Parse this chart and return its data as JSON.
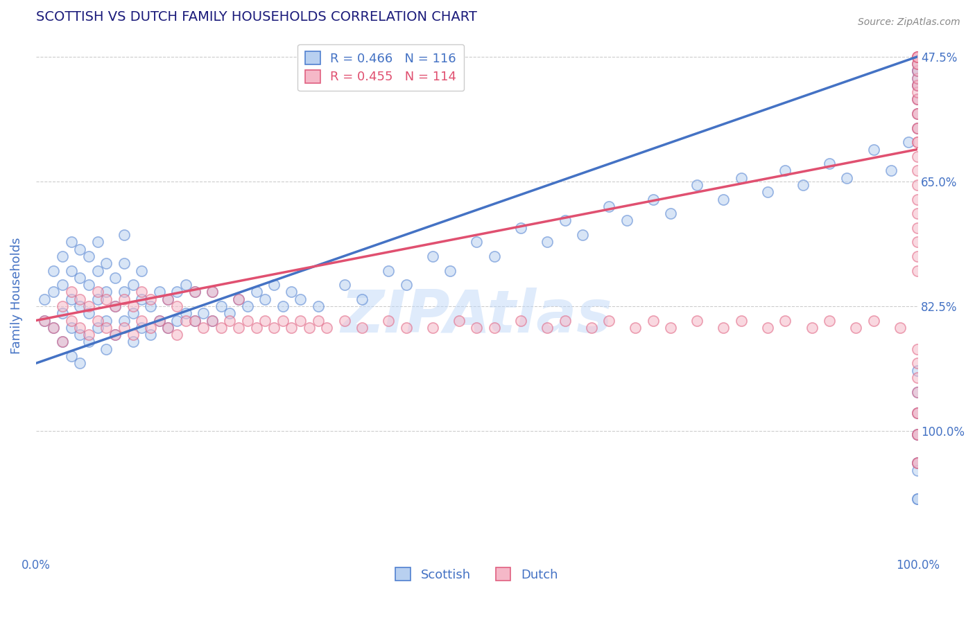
{
  "title": "SCOTTISH VS DUTCH FAMILY HOUSEHOLDS CORRELATION CHART",
  "source": "Source: ZipAtlas.com",
  "ylabel": "Family Households",
  "xlim": [
    0,
    100
  ],
  "ylim": [
    30,
    103
  ],
  "ytick_positions": [
    47.5,
    65.0,
    82.5,
    100.0
  ],
  "xtick_positions": [
    0,
    100
  ],
  "xtick_labels": [
    "0.0%",
    "100.0%"
  ],
  "right_ytick_labels": [
    "100.0%",
    "82.5%",
    "65.0%",
    "47.5%"
  ],
  "scottish_fill": "#b8d0f0",
  "dutch_fill": "#f5b8c8",
  "scottish_edge": "#5080d0",
  "dutch_edge": "#e06080",
  "scottish_line": "#4472c4",
  "dutch_line": "#e05070",
  "legend_R_scottish": "R = 0.466",
  "legend_N_scottish": "N = 116",
  "legend_R_dutch": "R = 0.455",
  "legend_N_dutch": "N = 114",
  "watermark": "ZIPAtlas",
  "watermark_color": "#c0d8f8",
  "title_color": "#1a1a7a",
  "axis_color": "#4472c4",
  "grid_color": "#cccccc",
  "background": "#ffffff",
  "scatter_size": 120,
  "scatter_alpha": 0.55,
  "edge_width": 1.2,
  "reg_blue_x0": 0,
  "reg_blue_y0": 57,
  "reg_blue_x1": 100,
  "reg_blue_y1": 100,
  "reg_pink_x0": 0,
  "reg_pink_y0": 63,
  "reg_pink_x1": 100,
  "reg_pink_y1": 87,
  "scottish_x": [
    1,
    1,
    2,
    2,
    2,
    3,
    3,
    3,
    3,
    4,
    4,
    4,
    4,
    4,
    5,
    5,
    5,
    5,
    5,
    6,
    6,
    6,
    6,
    7,
    7,
    7,
    7,
    8,
    8,
    8,
    8,
    9,
    9,
    9,
    10,
    10,
    10,
    10,
    11,
    11,
    11,
    12,
    12,
    12,
    13,
    13,
    14,
    14,
    15,
    15,
    16,
    16,
    17,
    17,
    18,
    18,
    19,
    20,
    20,
    21,
    22,
    23,
    24,
    25,
    26,
    27,
    28,
    29,
    30,
    32,
    35,
    37,
    40,
    42,
    45,
    47,
    50,
    52,
    55,
    58,
    60,
    62,
    65,
    67,
    70,
    72,
    75,
    78,
    80,
    83,
    85,
    87,
    90,
    92,
    95,
    97,
    99,
    100,
    100,
    100,
    100,
    100,
    100,
    100,
    100,
    100,
    100,
    100,
    100,
    100,
    100,
    100,
    100,
    100,
    100,
    100
  ],
  "scottish_y": [
    63,
    66,
    62,
    67,
    70,
    60,
    64,
    68,
    72,
    58,
    62,
    66,
    70,
    74,
    57,
    61,
    65,
    69,
    73,
    60,
    64,
    68,
    72,
    62,
    66,
    70,
    74,
    59,
    63,
    67,
    71,
    61,
    65,
    69,
    63,
    67,
    71,
    75,
    60,
    64,
    68,
    62,
    66,
    70,
    61,
    65,
    63,
    67,
    62,
    66,
    63,
    67,
    64,
    68,
    63,
    67,
    64,
    63,
    67,
    65,
    64,
    66,
    65,
    67,
    66,
    68,
    65,
    67,
    66,
    65,
    68,
    66,
    70,
    68,
    72,
    70,
    74,
    72,
    76,
    74,
    77,
    75,
    79,
    77,
    80,
    78,
    82,
    80,
    83,
    81,
    84,
    82,
    85,
    83,
    87,
    84,
    88,
    90,
    92,
    94,
    96,
    96,
    97,
    98,
    98,
    99,
    43,
    47,
    50,
    53,
    56,
    43,
    47,
    38,
    42,
    38
  ],
  "dutch_x": [
    1,
    2,
    3,
    3,
    4,
    4,
    5,
    5,
    6,
    6,
    7,
    7,
    8,
    8,
    9,
    9,
    10,
    10,
    11,
    11,
    12,
    12,
    13,
    13,
    14,
    15,
    15,
    16,
    16,
    17,
    18,
    18,
    19,
    20,
    20,
    21,
    22,
    23,
    23,
    24,
    25,
    26,
    27,
    28,
    29,
    30,
    31,
    32,
    33,
    35,
    37,
    40,
    42,
    45,
    48,
    50,
    52,
    55,
    58,
    60,
    63,
    65,
    68,
    70,
    72,
    75,
    78,
    80,
    83,
    85,
    88,
    90,
    93,
    95,
    98,
    100,
    100,
    100,
    100,
    100,
    100,
    100,
    100,
    100,
    100,
    100,
    100,
    100,
    100,
    100,
    100,
    100,
    100,
    100,
    100,
    100,
    100,
    100,
    100,
    100,
    100,
    100,
    100,
    100,
    100,
    100,
    100,
    100,
    100,
    100,
    100,
    100,
    100,
    100
  ],
  "dutch_y": [
    63,
    62,
    60,
    65,
    63,
    67,
    62,
    66,
    61,
    65,
    63,
    67,
    62,
    66,
    61,
    65,
    62,
    66,
    61,
    65,
    63,
    67,
    62,
    66,
    63,
    62,
    66,
    61,
    65,
    63,
    63,
    67,
    62,
    63,
    67,
    62,
    63,
    62,
    66,
    63,
    62,
    63,
    62,
    63,
    62,
    63,
    62,
    63,
    62,
    63,
    62,
    63,
    62,
    62,
    63,
    62,
    62,
    63,
    62,
    63,
    62,
    63,
    62,
    63,
    62,
    63,
    62,
    63,
    62,
    63,
    62,
    63,
    62,
    63,
    62,
    88,
    90,
    92,
    94,
    96,
    70,
    72,
    74,
    76,
    78,
    80,
    82,
    84,
    86,
    88,
    90,
    92,
    94,
    95,
    96,
    97,
    98,
    99,
    99,
    100,
    100,
    100,
    100,
    100,
    55,
    57,
    59,
    43,
    47,
    50,
    53,
    43,
    47,
    50
  ]
}
